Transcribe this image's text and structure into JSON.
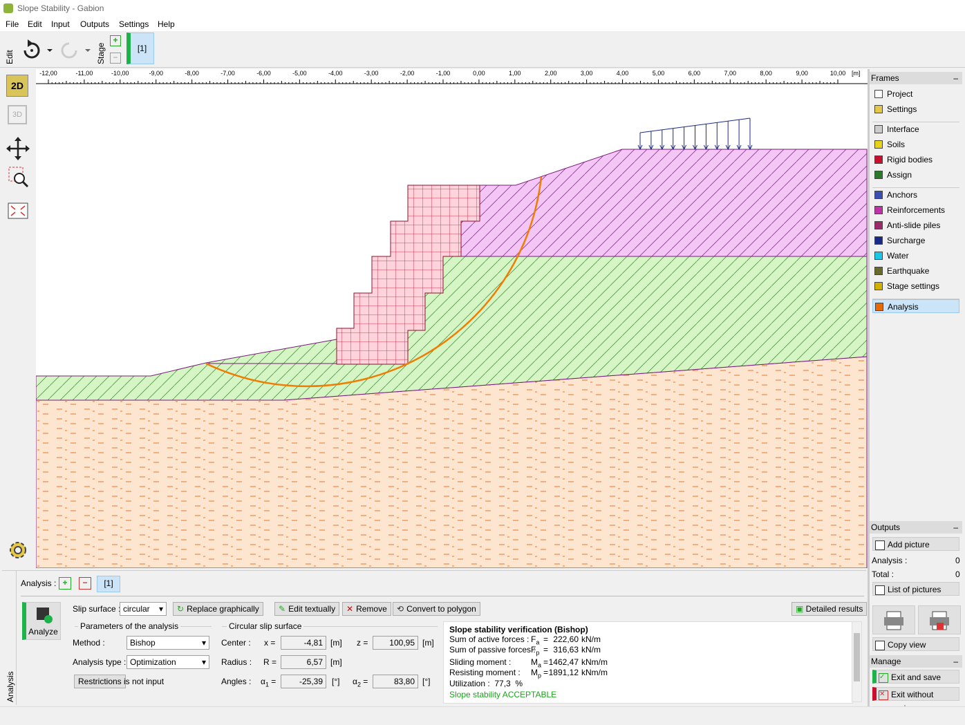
{
  "window": {
    "title": "Slope Stability - Gabion"
  },
  "menu": [
    "File",
    "Edit",
    "Input",
    "Outputs",
    "Settings",
    "Help"
  ],
  "toolbar": {
    "edit_label": "Edit",
    "stage_label": "Stage",
    "stage": "[1]"
  },
  "left_tools": {
    "view_2d": "2D",
    "view_3d": "3D"
  },
  "ruler": {
    "labels": [
      "-12,00",
      "-11,00",
      "-10,00",
      "-9,00",
      "-8,00",
      "-7,00",
      "-6,00",
      "-5,00",
      "-4,00",
      "-3,00",
      "-2,00",
      "-1,00",
      "0,00",
      "1,00",
      "2,00",
      "3,00",
      "4,00",
      "5,00",
      "6,00",
      "7,00",
      "8,00",
      "9,00",
      "10,00"
    ],
    "unit": "[m]"
  },
  "frames": {
    "title": "Frames",
    "items": [
      "Project",
      "Settings",
      "Interface",
      "Soils",
      "Rigid bodies",
      "Assign",
      "Anchors",
      "Reinforcements",
      "Anti-slide piles",
      "Surcharge",
      "Water",
      "Earthquake",
      "Stage settings",
      "Analysis"
    ]
  },
  "outputs": {
    "title": "Outputs",
    "add_picture": "Add picture",
    "analysis_label": "Analysis :",
    "analysis_count": "0",
    "total_label": "Total :",
    "total_count": "0",
    "list_of_pictures": "List of pictures",
    "copy_view": "Copy view"
  },
  "manage": {
    "title": "Manage",
    "exit_save": "Exit and save",
    "exit_no_save": "Exit without saving"
  },
  "analysis": {
    "side_label": "Analysis",
    "label": "Analysis :",
    "stage": "[1]",
    "analyze": "Analyze",
    "slip_label": "Slip surface :",
    "slip_value": "circular",
    "buttons": [
      "Replace graphically",
      "Edit textually",
      "Remove",
      "Convert to polygon"
    ],
    "detailed": "Detailed results",
    "params_title": "Parameters of the analysis",
    "method_label": "Method :",
    "method": "Bishop",
    "type_label": "Analysis type :",
    "type": "Optimization",
    "restrictions": "Restrictions",
    "restrictions_state": "is not input",
    "circle_title": "Circular slip surface",
    "center_label": "Center :",
    "x_eq": "x =",
    "x": "-4,81",
    "z_eq": "z =",
    "z": "100,95",
    "radius_label": "Radius :",
    "r_eq": "R =",
    "r": "6,57",
    "angles_label": "Angles :",
    "a1_sym": "α",
    "a1_sub": "1",
    "a1_eq": "=",
    "a1": "-25,39",
    "a2_sym": "α",
    "a2_sub": "2",
    "a2_eq": "=",
    "a2": "83,80",
    "unit_m": "[m]",
    "unit_deg": "[°]"
  },
  "results": {
    "title": "Slope stability verification (Bishop)",
    "rows": [
      [
        "Sum of active forces :",
        "F",
        "a",
        "=",
        "222,60",
        "kN/m"
      ],
      [
        "Sum of passive forces :",
        "F",
        "p",
        "=",
        "316,63",
        "kN/m"
      ],
      [
        "Sliding moment :",
        "M",
        "a",
        "=",
        "1462,47",
        "kNm/m"
      ],
      [
        "Resisting moment :",
        "M",
        "p",
        "=",
        "1891,12",
        "kNm/m"
      ]
    ],
    "utilization": "Utilization :  77,3  %",
    "verdict": "Slope stability ACCEPTABLE"
  }
}
